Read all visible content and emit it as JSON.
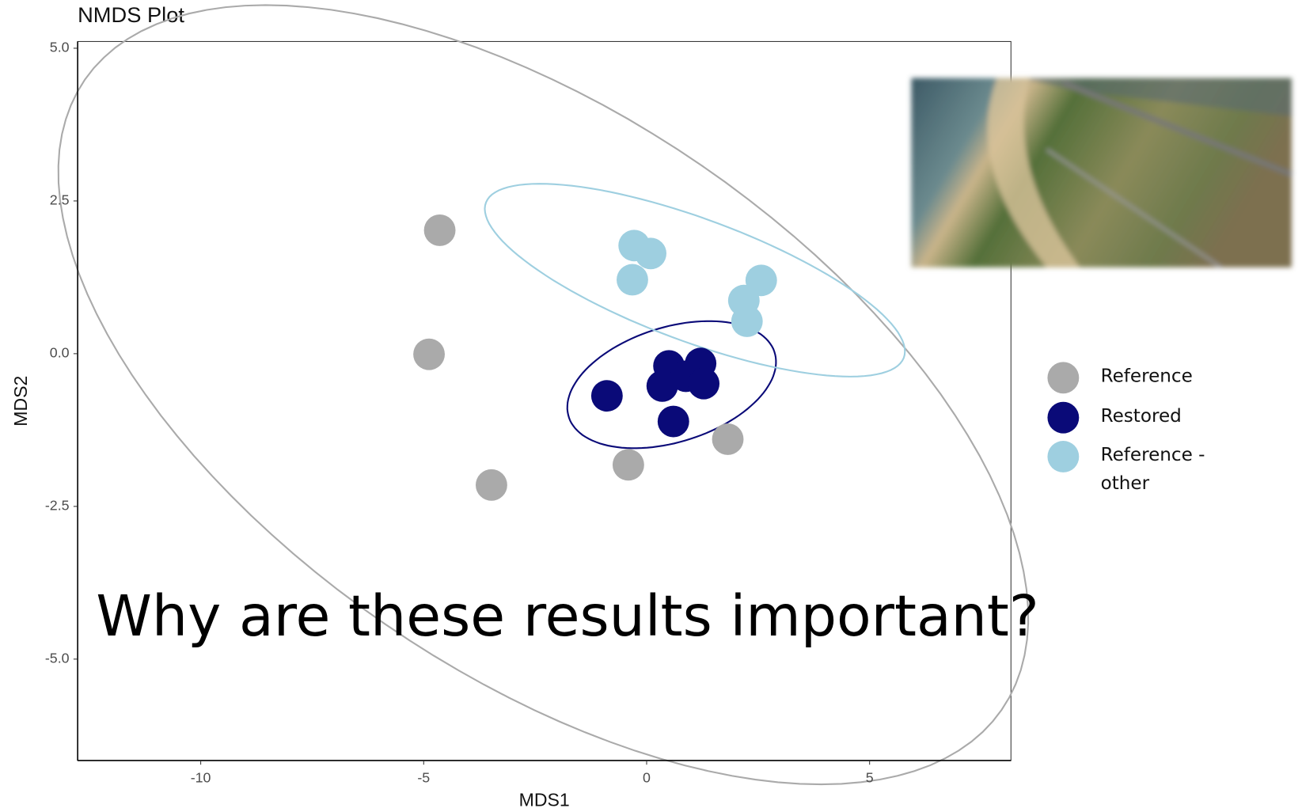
{
  "chart_data": {
    "type": "scatter",
    "title": "NMDS Plot",
    "x_label": "MDS1",
    "y_label": "MDS2",
    "annotation": "Why are these results important?",
    "xlim": [
      -12.76,
      8.17
    ],
    "ylim": [
      -6.66,
      5.11
    ],
    "xticks": [
      -10,
      -5,
      0,
      5
    ],
    "yticks": [
      {
        "value": 5,
        "label": "5.0"
      },
      {
        "value": 2.5,
        "label": "2.5"
      },
      {
        "value": 0,
        "label": "0.0"
      },
      {
        "value": -2.5,
        "label": "-2.5"
      },
      {
        "value": -5,
        "label": "-5.0"
      }
    ],
    "series": [
      {
        "name": "Reference",
        "color": "#aaaaaa",
        "x": [
          -4.64,
          -4.88,
          -3.48,
          -0.41,
          1.82
        ],
        "values": [
          2.02,
          -0.01,
          -2.15,
          -1.82,
          -1.4
        ]
      },
      {
        "name": "Restored",
        "color": "#0a0a78",
        "x": [
          -0.89,
          0.5,
          1.21,
          0.88,
          0.35,
          1.28,
          0.6
        ],
        "values": [
          -0.69,
          -0.2,
          -0.16,
          -0.37,
          -0.53,
          -0.49,
          -1.11
        ]
      },
      {
        "name": "Reference - other",
        "color": "#9ecfe0",
        "x": [
          -0.28,
          0.09,
          -0.32,
          2.57,
          2.18,
          2.25
        ],
        "values": [
          1.77,
          1.64,
          1.21,
          1.2,
          0.87,
          0.53
        ]
      }
    ]
  }
}
